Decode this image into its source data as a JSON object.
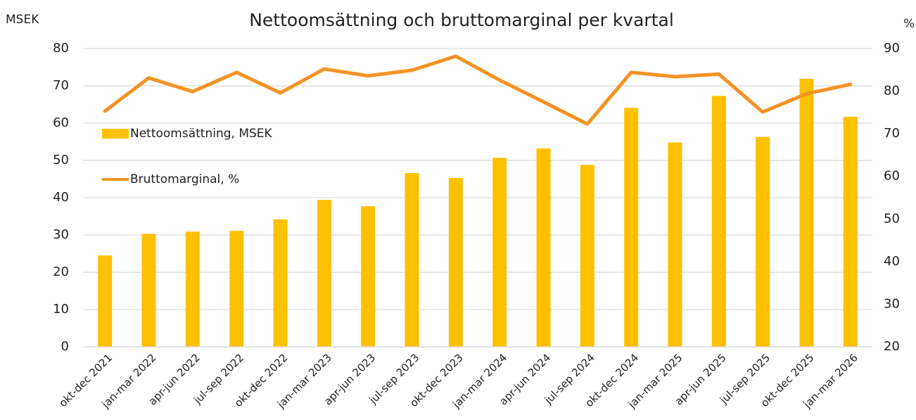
{
  "chart_data": {
    "type": "bar",
    "title": "Nettoomsättning och bruttomarginal per kvartal",
    "y_label": "MSEK",
    "y2_label": "%",
    "categories": [
      "okt-dec 2021",
      "jan-mar 2022",
      "apr-jun 2022",
      "jul-sep 2022",
      "okt-dec 2022",
      "jan-mar 2023",
      "apr-jun 2023",
      "jul-sep 2023",
      "okt-dec 2023",
      "jan-mar 2024",
      "apr-jun 2024",
      "jul-sep 2024",
      "okt-dec 2024",
      "jan-mar 2025",
      "apr-jun 2025",
      "jul-sep 2025",
      "okt-dec 2025",
      "jan-mar 2026"
    ],
    "series": [
      {
        "name": "Nettoomsättning, MSEK",
        "type": "bar",
        "color": "#FFC000",
        "values": [
          24.5,
          30.3,
          30.9,
          31.1,
          34.2,
          39.4,
          37.7,
          46.6,
          45.3,
          50.7,
          53.2,
          48.8,
          64.1,
          54.8,
          67.3,
          56.3,
          71.9,
          61.7
        ]
      },
      {
        "name": "Bruttomarginal, %",
        "type": "line",
        "axis": "y2",
        "color": "#F39324",
        "values": [
          75.3,
          83.1,
          79.9,
          84.4,
          79.6,
          85.2,
          83.6,
          84.9,
          88.2,
          82.6,
          77.5,
          72.3,
          84.4,
          83.4,
          84.0,
          75.1,
          79.4,
          81.6
        ]
      }
    ],
    "ylim": [
      0,
      80
    ],
    "yticks": [
      0,
      10,
      20,
      30,
      40,
      50,
      60,
      70,
      80
    ],
    "y2lim": [
      20,
      90
    ],
    "y2ticks": [
      20,
      30,
      40,
      50,
      60,
      70,
      80,
      90
    ],
    "grid": true,
    "legend": "left"
  }
}
